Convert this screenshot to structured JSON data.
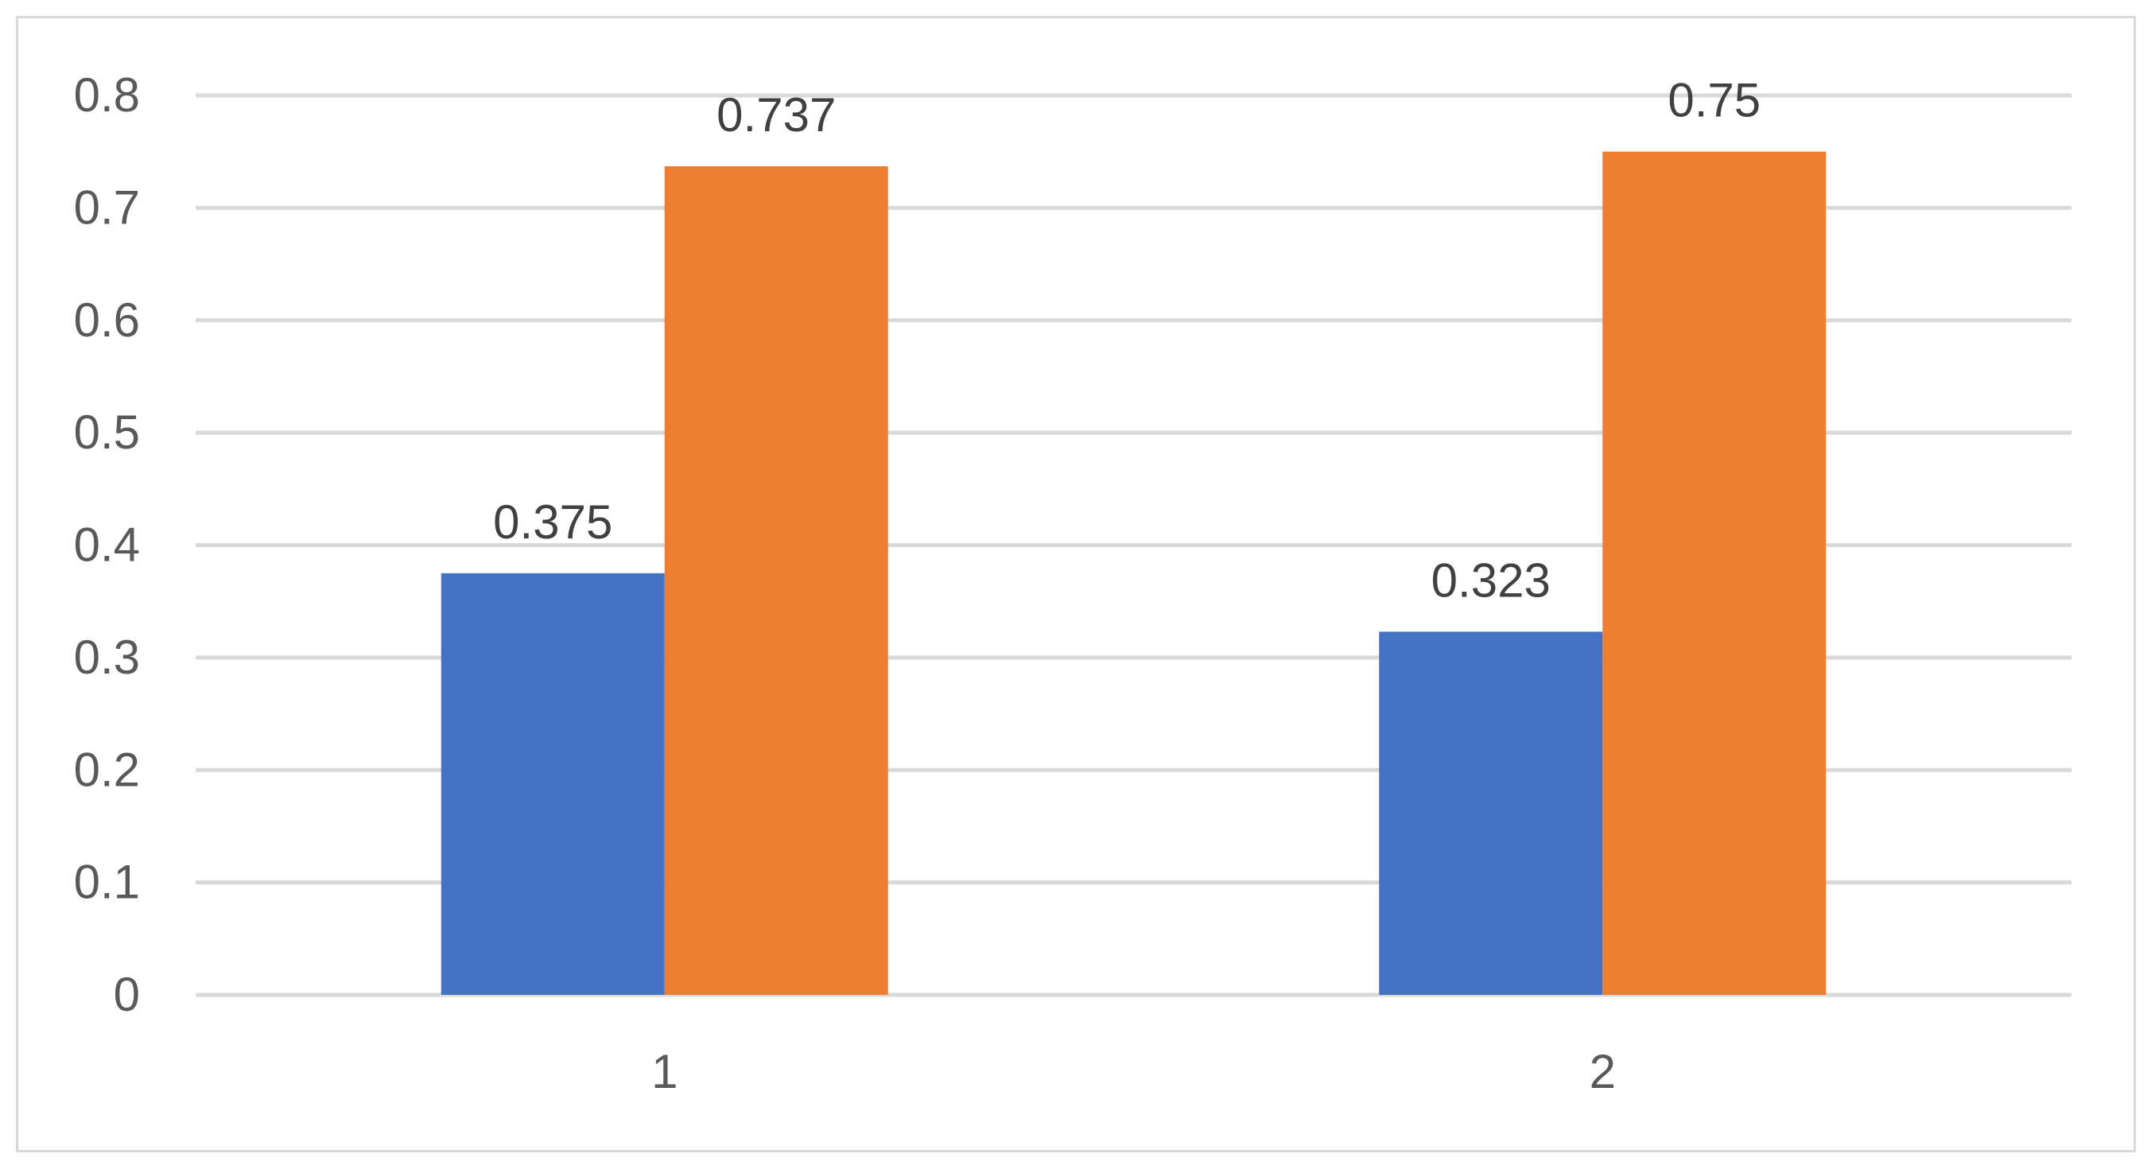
{
  "chart_data": {
    "type": "bar",
    "title": "",
    "xlabel": "",
    "ylabel": "",
    "categories": [
      "1",
      "2"
    ],
    "series": [
      {
        "values": [
          0.375,
          0.323
        ],
        "color": "#4472c4",
        "labels": [
          "0.375",
          "0.323"
        ]
      },
      {
        "values": [
          0.737,
          0.75
        ],
        "color": "#ed7d31",
        "labels": [
          "0.737",
          "0.75"
        ]
      }
    ],
    "ylim": [
      0,
      0.8
    ],
    "yticks": [
      0,
      0.1,
      0.2,
      0.3,
      0.4,
      0.5,
      0.6,
      0.7,
      0.8
    ],
    "ytick_labels": [
      "0",
      "0.1",
      "0.2",
      "0.3",
      "0.4",
      "0.5",
      "0.6",
      "0.7",
      "0.8"
    ],
    "grid": true,
    "gridline_color": "#d9d9d9",
    "legend": "none"
  }
}
